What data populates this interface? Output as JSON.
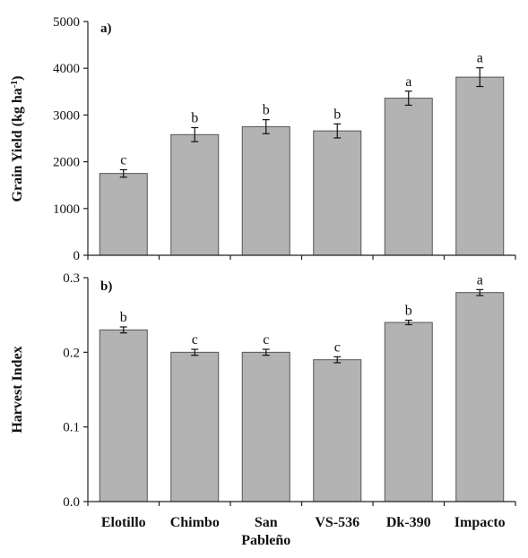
{
  "chart_data": [
    {
      "type": "bar",
      "panel_label": "a)",
      "ylabel": "Grain Yield (kg ha",
      "ylabel_sup": "-1",
      "ylabel_close": ")",
      "ylim": [
        0,
        5000
      ],
      "yticks": [
        0,
        1000,
        2000,
        3000,
        4000,
        5000
      ],
      "ytick_labels": [
        "0",
        "1000",
        "2000",
        "3000",
        "4000",
        "5000"
      ],
      "categories": [
        "Elotillo",
        "Chimbo",
        "San Pableño",
        "VS-536",
        "Dk-390",
        "Impacto"
      ],
      "values": [
        1750,
        2580,
        2750,
        2660,
        3360,
        3810
      ],
      "errors": [
        80,
        150,
        150,
        150,
        150,
        200
      ],
      "significance": [
        "c",
        "b",
        "b",
        "b",
        "a",
        "a"
      ],
      "grid": false,
      "bar_color": "#b3b3b3"
    },
    {
      "type": "bar",
      "panel_label": "b)",
      "ylabel": "Harvest Index",
      "ylim": [
        0,
        0.3
      ],
      "yticks": [
        0,
        0.1,
        0.2,
        0.3
      ],
      "ytick_labels": [
        "0.0",
        "0.1",
        "0.2",
        "0.3"
      ],
      "categories": [
        "Elotillo",
        "Chimbo",
        "San Pableño",
        "VS-536",
        "Dk-390",
        "Impacto"
      ],
      "category_lines": [
        [
          "Elotillo"
        ],
        [
          "Chimbo"
        ],
        [
          "San",
          "Pableño"
        ],
        [
          "VS-536"
        ],
        [
          "Dk-390"
        ],
        [
          "Impacto"
        ]
      ],
      "values": [
        0.23,
        0.2,
        0.2,
        0.19,
        0.24,
        0.28
      ],
      "errors": [
        0.004,
        0.004,
        0.004,
        0.004,
        0.003,
        0.004
      ],
      "significance": [
        "b",
        "c",
        "c",
        "c",
        "b",
        "a"
      ],
      "grid": false,
      "bar_color": "#b3b3b3"
    }
  ]
}
